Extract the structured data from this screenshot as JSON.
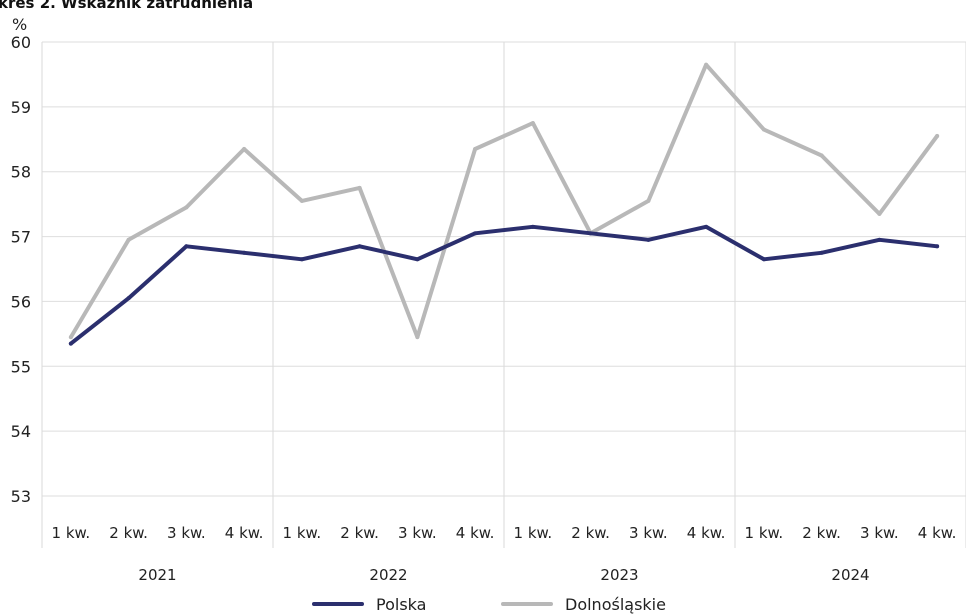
{
  "chart_data": {
    "type": "line",
    "title": "kres 2. Wskaźnik zatrudnienia",
    "ylabel": "%",
    "ylim": [
      53,
      60
    ],
    "yticks": [
      53,
      54,
      55,
      56,
      57,
      58,
      59,
      60
    ],
    "categories": [
      "1 kw.",
      "2 kw.",
      "3 kw.",
      "4 kw.",
      "1 kw.",
      "2 kw.",
      "3 kw.",
      "4 kw.",
      "1 kw.",
      "2 kw.",
      "3 kw.",
      "4 kw.",
      "1 kw.",
      "2 kw.",
      "3 kw.",
      "4 kw."
    ],
    "groups": [
      "2021",
      "2022",
      "2023",
      "2024"
    ],
    "series": [
      {
        "name": "Polska",
        "color": "#2b2f6e",
        "values": [
          55.35,
          56.05,
          56.85,
          56.75,
          56.65,
          56.85,
          56.65,
          57.05,
          57.15,
          57.05,
          56.95,
          57.15,
          56.65,
          56.75,
          56.95,
          56.85
        ]
      },
      {
        "name": "Dolnośląskie",
        "color": "#b8b8b8",
        "values": [
          55.45,
          56.95,
          57.45,
          58.35,
          57.55,
          57.75,
          55.45,
          58.35,
          58.75,
          57.05,
          57.55,
          59.65,
          58.65,
          58.25,
          57.35,
          58.55
        ]
      }
    ],
    "grid": true,
    "legend": "bottom"
  }
}
